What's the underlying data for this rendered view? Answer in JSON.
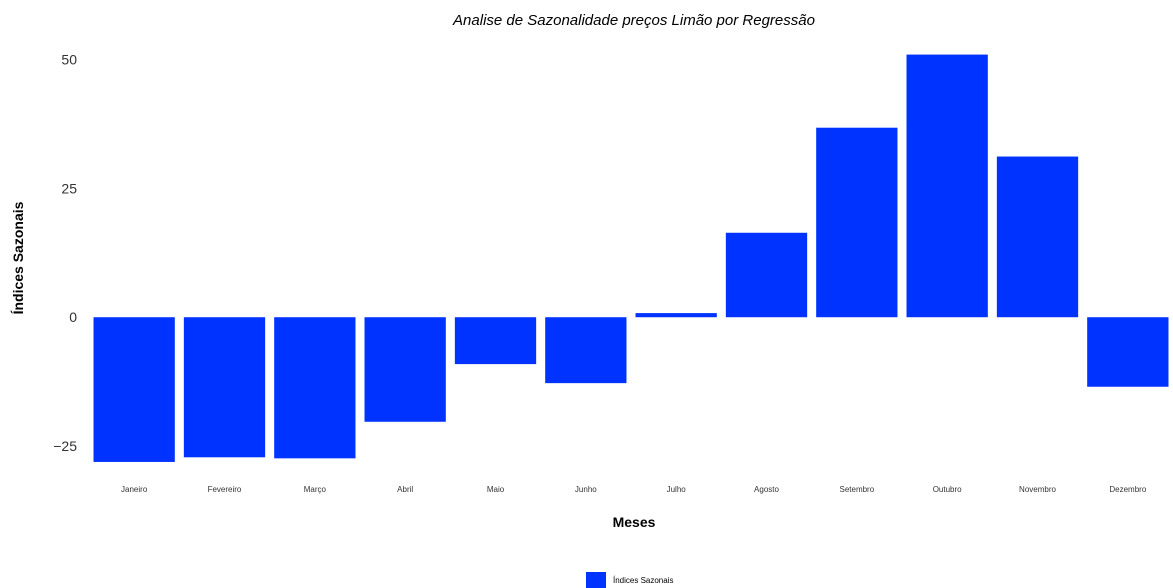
{
  "chart_data": {
    "type": "bar",
    "title": "Analise de Sazonalidade preços Limão por Regressão",
    "xlabel": "Meses",
    "ylabel": "Índices Sazonais",
    "categories": [
      "Janeiro",
      "Fevereiro",
      "Março",
      "Abril",
      "Maio",
      "Junho",
      "Julho",
      "Agosto",
      "Setembro",
      "Outubro",
      "Novembro",
      "Dezembro"
    ],
    "series": [
      {
        "name": "Índices Sazonais",
        "color": "#0033ff",
        "values": [
          -28.1,
          -27.2,
          -27.4,
          -20.3,
          -9.1,
          -12.8,
          0.8,
          16.4,
          36.8,
          51.0,
          31.2,
          -13.5
        ]
      }
    ],
    "ylim": [
      -28.5,
      51.5
    ],
    "yticks": [
      -25,
      0,
      25,
      50
    ],
    "grid": false,
    "legend": "bottom"
  }
}
